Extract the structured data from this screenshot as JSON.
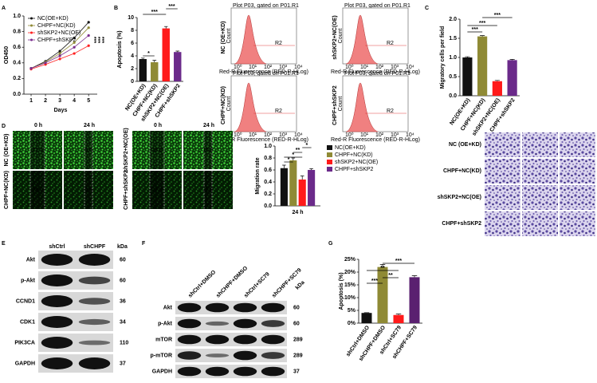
{
  "figure": {
    "panel_labels": [
      "A",
      "B",
      "C",
      "D",
      "E",
      "F",
      "G"
    ]
  },
  "chart_data": [
    {
      "type": "line",
      "x_label": "Days",
      "y_label": "OD450",
      "x": [
        1,
        2,
        3,
        4,
        5
      ],
      "xlim": [
        0.5,
        5.6
      ],
      "xticks": [
        1,
        2,
        3,
        4,
        5
      ],
      "ylim": [
        0,
        1.0
      ],
      "yticks": [
        {
          "value": 0,
          "label": "0.0"
        },
        {
          "value": 0.2,
          "label": "0.2"
        },
        {
          "value": 0.4,
          "label": "0.4"
        },
        {
          "value": 0.6,
          "label": "0.6"
        },
        {
          "value": 0.8,
          "label": "0.8"
        },
        {
          "value": 1.0,
          "label": "1.0"
        }
      ],
      "series": [
        {
          "name": "NC(OE+KD)",
          "color": "#111111",
          "values": [
            0.33,
            0.42,
            0.55,
            0.72,
            0.92
          ]
        },
        {
          "name": "CHPF+NC(KD)",
          "color": "#8f8a35",
          "values": [
            0.33,
            0.41,
            0.52,
            0.66,
            0.85
          ]
        },
        {
          "name": "shSKP2+NC(OE)",
          "color": "#ff2020",
          "values": [
            0.32,
            0.38,
            0.45,
            0.52,
            0.62
          ]
        },
        {
          "name": "CHPF+shSKP2",
          "color": "#7b2d8e",
          "values": [
            0.33,
            0.4,
            0.49,
            0.6,
            0.75
          ]
        }
      ],
      "annotations": [
        "***",
        "***",
        "***"
      ]
    },
    {
      "type": "bar",
      "y_label": "Apoptosis (%)",
      "categories": [
        "NC(OE+KD)",
        "CHPF+NC(KD)",
        "shSKP2+NC(OE)",
        "CHPF+shSKP2"
      ],
      "values": [
        3.5,
        3.0,
        8.3,
        4.6
      ],
      "errors": [
        0.15,
        0.3,
        0.3,
        0.15
      ],
      "colors": [
        "#111111",
        "#8f8a35",
        "#ff1a1a",
        "#6b2a8a"
      ],
      "ylim": [
        0,
        10
      ],
      "yticks": [
        0,
        2,
        4,
        6,
        8,
        10
      ],
      "annotations": [
        "*",
        "***",
        "***"
      ]
    },
    {
      "type": "bar",
      "y_label": "Migratory cells per field",
      "categories": [
        "NC(OE+KD)",
        "CHPF+NC(KD)",
        "shSKP2+NC(OE)",
        "CHPF+shSKP2"
      ],
      "values": [
        1.0,
        1.55,
        0.38,
        0.93
      ],
      "errors": [
        0.02,
        0.02,
        0.02,
        0.02
      ],
      "colors": [
        "#111111",
        "#8f8a35",
        "#ff1a1a",
        "#6b2a8a"
      ],
      "ylim": [
        0,
        2.0
      ],
      "yticks": [
        {
          "value": 0,
          "label": "0.0"
        },
        {
          "value": 0.5,
          "label": "0.5"
        },
        {
          "value": 1.0,
          "label": "1.0"
        },
        {
          "value": 1.5,
          "label": "1.5"
        },
        {
          "value": 2.0,
          "label": "2.0"
        }
      ],
      "annotations": [
        "***",
        "***",
        "***"
      ]
    },
    {
      "type": "bar",
      "y_label": "Migration rate",
      "categories": [
        "24 h"
      ],
      "series": [
        {
          "name": "NC(OE+KD)",
          "color": "#111111",
          "values": [
            0.63
          ],
          "errors": [
            0.05
          ]
        },
        {
          "name": "CHPF+NC(KD)",
          "color": "#8f8a35",
          "values": [
            0.76
          ],
          "errors": [
            0.04
          ]
        },
        {
          "name": "shSKP2+NC(OE)",
          "color": "#ff1a1a",
          "values": [
            0.44
          ],
          "errors": [
            0.06
          ]
        },
        {
          "name": "CHPF+shSKP2",
          "color": "#6b2a8a",
          "values": [
            0.6
          ],
          "errors": [
            0.02
          ]
        }
      ],
      "ylim": [
        0,
        1.0
      ],
      "yticks": [
        {
          "value": 0,
          "label": "0.0"
        },
        {
          "value": 0.2,
          "label": "0.2"
        },
        {
          "value": 0.4,
          "label": "0.4"
        },
        {
          "value": 0.6,
          "label": "0.6"
        },
        {
          "value": 0.8,
          "label": "0.8"
        },
        {
          "value": 1.0,
          "label": "1.0"
        }
      ],
      "annotations": [
        "*",
        "*",
        "**",
        "*"
      ]
    },
    {
      "type": "bar",
      "y_label": "Apoptosis (%)",
      "categories": [
        "shCtrl+DMSO",
        "shCHPF+DMSO",
        "shCtrl+SC79",
        "shCHPF+SC79"
      ],
      "values": [
        4.0,
        22,
        3.2,
        18
      ],
      "errors": [
        0.1,
        1.0,
        0.4,
        0.6
      ],
      "colors": [
        "#111111",
        "#8f8a35",
        "#ff1a1a",
        "#5a2070"
      ],
      "ylim": [
        0,
        25
      ],
      "yticks": [
        {
          "value": 0,
          "label": "0%"
        },
        {
          "value": 5,
          "label": "5%"
        },
        {
          "value": 10,
          "label": "10%"
        },
        {
          "value": 15,
          "label": "15%"
        },
        {
          "value": 20,
          "label": "20%"
        },
        {
          "value": 25,
          "label": "25%"
        }
      ],
      "annotations": [
        "***",
        "**",
        "**",
        "***"
      ]
    }
  ],
  "flow": {
    "header": "Plot P03, gated on P01.R1",
    "gate": "R2",
    "x_label": "Red-R Fluorescence (RED-R-HLog)",
    "y_label": "Count",
    "x_ticks": [
      "10⁰",
      "10¹",
      "10²",
      "10³",
      "10⁴"
    ],
    "samples": [
      "NC (OE+KD)",
      "shSKP2+NC(OE)",
      "CHPF+NC(KD)",
      "CHPF+shSKP2"
    ]
  },
  "scratch": {
    "times": [
      "0 h",
      "24 h"
    ],
    "samples": [
      "NC (OE+KD)",
      "CHPF+NC(KD)",
      "shSKP2+NC(OE)",
      "CHPF+shSKP2"
    ],
    "widths": [
      [
        "27.1",
        "8.6"
      ],
      [
        "28.0",
        "5.9"
      ],
      [
        "28.0",
        "16.3"
      ],
      [
        "27.4",
        "11.8"
      ]
    ]
  },
  "transwell": {
    "samples": [
      "NC (OE+KD)",
      "CHPF+NC(KD)",
      "shSKP2+NC(OE)",
      "CHPF+shSKP2"
    ]
  },
  "western_e": {
    "columns": [
      "shCtrl",
      "shCHPF"
    ],
    "unit": "kDa",
    "rows": [
      {
        "protein": "Akt",
        "kda": 60
      },
      {
        "protein": "p-Akt",
        "kda": 60
      },
      {
        "protein": "CCND1",
        "kda": 36
      },
      {
        "protein": "CDK1",
        "kda": 34
      },
      {
        "protein": "PIK3CA",
        "kda": 110
      },
      {
        "protein": "GAPDH",
        "kda": 37
      }
    ]
  },
  "western_f": {
    "columns": [
      "shCtrl+DMSO",
      "shCHPF+DMSO",
      "shCtrl+SC79",
      "shCHPF+SC79"
    ],
    "unit": "kDa",
    "rows": [
      {
        "protein": "Akt",
        "kda": 60
      },
      {
        "protein": "p-Akt",
        "kda": 60
      },
      {
        "protein": "mTOR",
        "kda": 289
      },
      {
        "protein": "p-mTOR",
        "kda": 289
      },
      {
        "protein": "GAPDH",
        "kda": 37
      }
    ]
  }
}
